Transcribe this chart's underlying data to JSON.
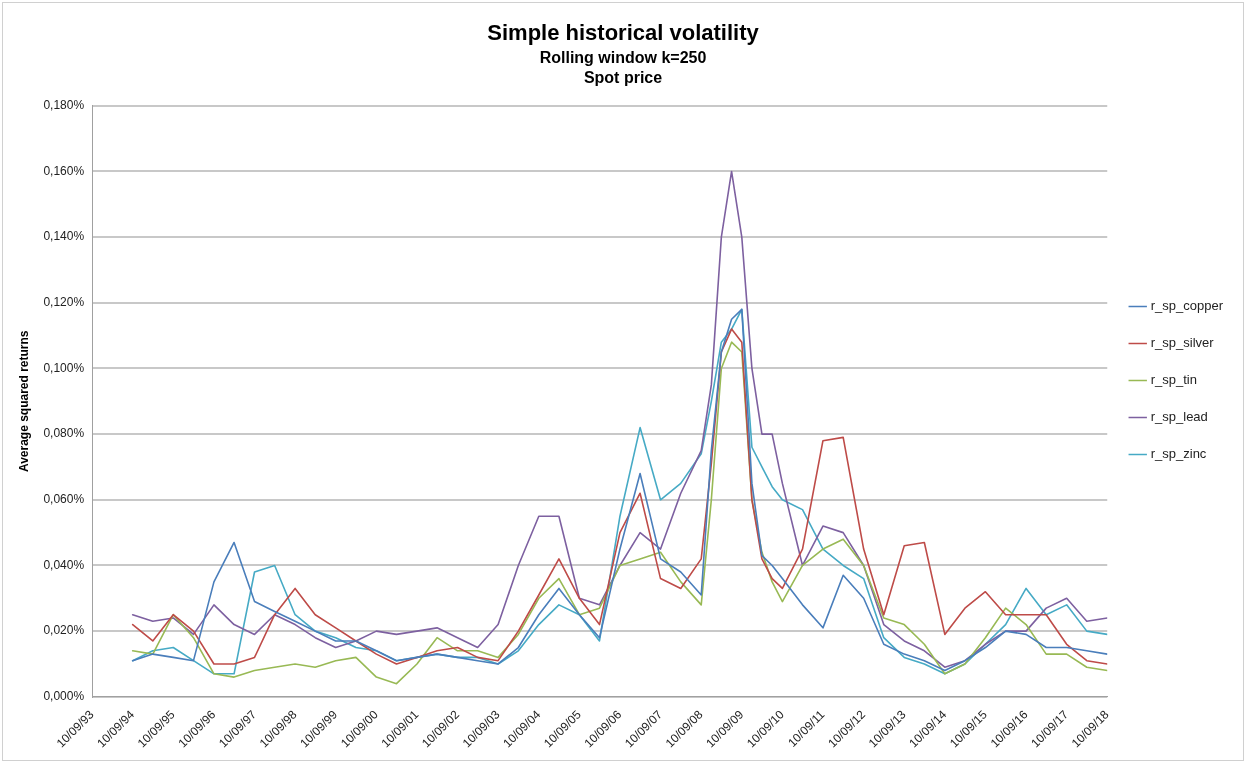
{
  "chart_data": {
    "type": "line",
    "title": "Simple historical volatility",
    "subtitle": "Rolling window k=250\nSpot price",
    "ylabel": "Average squared returns",
    "x": [
      "1994-09-10",
      "1995-03-10",
      "1995-09-10",
      "1996-03-10",
      "1996-09-10",
      "1997-03-10",
      "1997-09-10",
      "1998-03-10",
      "1998-09-10",
      "1999-03-10",
      "1999-09-10",
      "2000-03-10",
      "2000-09-10",
      "2001-03-10",
      "2001-09-10",
      "2002-03-10",
      "2002-09-10",
      "2003-03-10",
      "2003-09-10",
      "2004-03-10",
      "2004-09-10",
      "2005-03-10",
      "2005-09-10",
      "2006-03-10",
      "2006-09-10",
      "2007-03-10",
      "2007-09-10",
      "2008-03-10",
      "2008-09-10",
      "2008-12-10",
      "2009-03-10",
      "2009-06-10",
      "2009-09-10",
      "2009-12-10",
      "2010-03-10",
      "2010-06-10",
      "2010-09-10",
      "2011-03-10",
      "2011-09-10",
      "2012-03-10",
      "2012-09-10",
      "2013-03-10",
      "2013-09-10",
      "2014-03-10",
      "2014-09-10",
      "2015-03-10",
      "2015-09-10",
      "2016-03-10",
      "2016-09-10",
      "2017-03-10",
      "2017-09-10",
      "2018-03-10",
      "2018-09-10"
    ],
    "series": [
      {
        "name": "r_sp_copper",
        "color": "#4a7ebb",
        "values": [
          0.011,
          0.013,
          0.012,
          0.011,
          0.035,
          0.047,
          0.029,
          0.026,
          0.023,
          0.02,
          0.017,
          0.017,
          0.014,
          0.011,
          0.012,
          0.013,
          0.012,
          0.011,
          0.01,
          0.015,
          0.025,
          0.033,
          0.025,
          0.018,
          0.045,
          0.068,
          0.042,
          0.038,
          0.031,
          0.075,
          0.105,
          0.115,
          0.118,
          0.065,
          0.043,
          0.04,
          0.036,
          0.028,
          0.021,
          0.037,
          0.03,
          0.016,
          0.013,
          0.011,
          0.008,
          0.011,
          0.015,
          0.02,
          0.019,
          0.015,
          0.015,
          0.014,
          0.013
        ]
      },
      {
        "name": "r_sp_silver",
        "color": "#be4b48",
        "values": [
          0.022,
          0.017,
          0.025,
          0.02,
          0.01,
          0.01,
          0.012,
          0.025,
          0.033,
          0.025,
          0.021,
          0.017,
          0.013,
          0.01,
          0.012,
          0.014,
          0.015,
          0.012,
          0.011,
          0.02,
          0.031,
          0.042,
          0.03,
          0.022,
          0.05,
          0.062,
          0.036,
          0.033,
          0.042,
          0.071,
          0.105,
          0.112,
          0.108,
          0.06,
          0.042,
          0.036,
          0.033,
          0.045,
          0.078,
          0.079,
          0.045,
          0.025,
          0.046,
          0.047,
          0.019,
          0.027,
          0.032,
          0.025,
          0.025,
          0.025,
          0.016,
          0.011,
          0.01
        ]
      },
      {
        "name": "r_sp_tin",
        "color": "#98b954",
        "values": [
          0.014,
          0.013,
          0.025,
          0.018,
          0.007,
          0.006,
          0.008,
          0.009,
          0.01,
          0.009,
          0.011,
          0.012,
          0.006,
          0.004,
          0.01,
          0.018,
          0.014,
          0.014,
          0.012,
          0.019,
          0.03,
          0.036,
          0.025,
          0.027,
          0.04,
          0.042,
          0.044,
          0.035,
          0.028,
          0.06,
          0.1,
          0.108,
          0.105,
          0.06,
          0.044,
          0.035,
          0.029,
          0.04,
          0.045,
          0.048,
          0.04,
          0.024,
          0.022,
          0.016,
          0.007,
          0.01,
          0.018,
          0.027,
          0.022,
          0.013,
          0.013,
          0.009,
          0.008
        ]
      },
      {
        "name": "r_sp_lead",
        "color": "#7d60a0",
        "values": [
          0.025,
          0.023,
          0.024,
          0.019,
          0.028,
          0.022,
          0.019,
          0.025,
          0.022,
          0.018,
          0.015,
          0.017,
          0.02,
          0.019,
          0.02,
          0.021,
          0.018,
          0.015,
          0.022,
          0.04,
          0.055,
          0.055,
          0.03,
          0.028,
          0.04,
          0.05,
          0.045,
          0.062,
          0.075,
          0.095,
          0.14,
          0.16,
          0.14,
          0.1,
          0.08,
          0.08,
          0.065,
          0.04,
          0.052,
          0.05,
          0.04,
          0.022,
          0.017,
          0.014,
          0.009,
          0.011,
          0.016,
          0.02,
          0.02,
          0.027,
          0.03,
          0.023,
          0.024
        ]
      },
      {
        "name": "r_sp_zinc",
        "color": "#46aac5",
        "values": [
          0.011,
          0.014,
          0.015,
          0.011,
          0.007,
          0.007,
          0.038,
          0.04,
          0.025,
          0.02,
          0.018,
          0.015,
          0.014,
          0.011,
          0.012,
          0.013,
          0.012,
          0.012,
          0.01,
          0.014,
          0.022,
          0.028,
          0.025,
          0.017,
          0.055,
          0.082,
          0.06,
          0.065,
          0.074,
          0.09,
          0.108,
          0.112,
          0.118,
          0.076,
          0.07,
          0.064,
          0.06,
          0.057,
          0.045,
          0.04,
          0.036,
          0.018,
          0.012,
          0.01,
          0.007,
          0.01,
          0.016,
          0.022,
          0.033,
          0.025,
          0.028,
          0.02,
          0.019
        ]
      }
    ],
    "xlim": [
      "1993-09-10",
      "2018-09-10"
    ],
    "xticks": [
      {
        "value": "1993-09-10",
        "label": "10/09/93"
      },
      {
        "value": "1994-09-10",
        "label": "10/09/94"
      },
      {
        "value": "1995-09-10",
        "label": "10/09/95"
      },
      {
        "value": "1996-09-10",
        "label": "10/09/96"
      },
      {
        "value": "1997-09-10",
        "label": "10/09/97"
      },
      {
        "value": "1998-09-10",
        "label": "10/09/98"
      },
      {
        "value": "1999-09-10",
        "label": "10/09/99"
      },
      {
        "value": "2000-09-10",
        "label": "10/09/00"
      },
      {
        "value": "2001-09-10",
        "label": "10/09/01"
      },
      {
        "value": "2002-09-10",
        "label": "10/09/02"
      },
      {
        "value": "2003-09-10",
        "label": "10/09/03"
      },
      {
        "value": "2004-09-10",
        "label": "10/09/04"
      },
      {
        "value": "2005-09-10",
        "label": "10/09/05"
      },
      {
        "value": "2006-09-10",
        "label": "10/09/06"
      },
      {
        "value": "2007-09-10",
        "label": "10/09/07"
      },
      {
        "value": "2008-09-10",
        "label": "10/09/08"
      },
      {
        "value": "2009-09-10",
        "label": "10/09/09"
      },
      {
        "value": "2010-09-10",
        "label": "10/09/10"
      },
      {
        "value": "2011-09-10",
        "label": "10/09/11"
      },
      {
        "value": "2012-09-10",
        "label": "10/09/12"
      },
      {
        "value": "2013-09-10",
        "label": "10/09/13"
      },
      {
        "value": "2014-09-10",
        "label": "10/09/14"
      },
      {
        "value": "2015-09-10",
        "label": "10/09/15"
      },
      {
        "value": "2016-09-10",
        "label": "10/09/16"
      },
      {
        "value": "2017-09-10",
        "label": "10/09/17"
      },
      {
        "value": "2018-09-10",
        "label": "10/09/18"
      }
    ],
    "ylim": [
      0,
      0.18
    ],
    "yticks": [
      {
        "value": 0,
        "label": "0,000%"
      },
      {
        "value": 0.02,
        "label": "0,020%"
      },
      {
        "value": 0.04,
        "label": "0,040%"
      },
      {
        "value": 0.06,
        "label": "0,060%"
      },
      {
        "value": 0.08,
        "label": "0,080%"
      },
      {
        "value": 0.1,
        "label": "0,100%"
      },
      {
        "value": 0.12,
        "label": "0,120%"
      },
      {
        "value": 0.14,
        "label": "0,140%"
      },
      {
        "value": 0.16,
        "label": "0,160%"
      },
      {
        "value": 0.18,
        "label": "0,180%"
      }
    ],
    "grid": "y",
    "legend": "right",
    "marker": "none",
    "line_style": "solid"
  }
}
